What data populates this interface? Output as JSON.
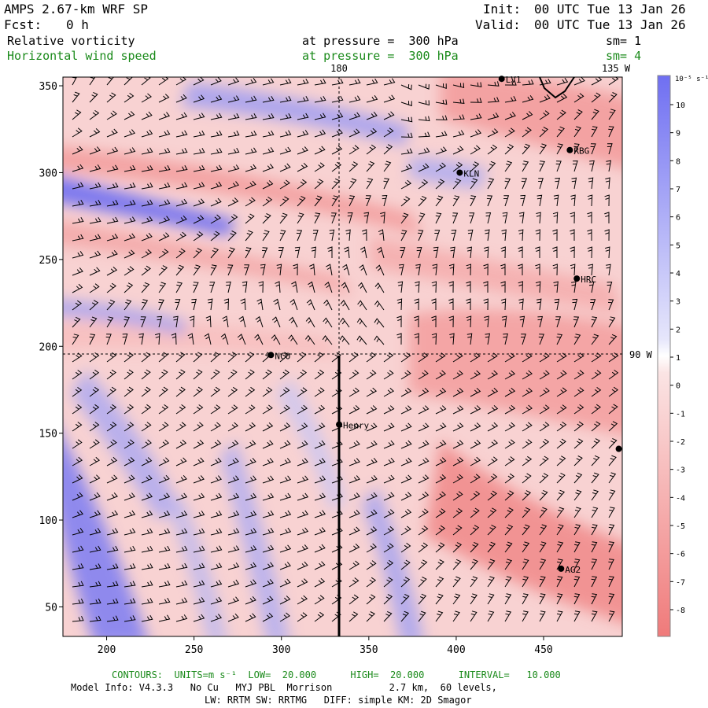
{
  "header": {
    "model_title": "AMPS 2.67-km WRF SP",
    "forecast_label": "Fcst:",
    "forecast_value": "0 h",
    "init_label": "Init:",
    "init_value": "00 UTC Tue 13 Jan 26",
    "valid_label": "Valid:",
    "valid_value": "00 UTC Tue 13 Jan 26",
    "field1_name": "Relative vorticity",
    "field1_level": "at pressure =  300 hPa",
    "field1_sm": "sm= 1",
    "field2_name": "Horizontal wind speed",
    "field2_level": "at pressure =  300 hPa",
    "field2_sm": "sm= 4"
  },
  "map": {
    "x_ticks": [
      200,
      250,
      300,
      350,
      400,
      450
    ],
    "y_ticks": [
      50,
      100,
      150,
      200,
      250,
      300,
      350
    ],
    "x_range": [
      175,
      495
    ],
    "y_range": [
      33,
      355
    ],
    "meridian_180_label": "180",
    "meridian_135w_label": "135 W",
    "parallel_90w_label": "90 W",
    "stations": [
      {
        "name": "KLN",
        "x": 402,
        "y": 300
      },
      {
        "name": "RBG",
        "x": 465,
        "y": 313
      },
      {
        "name": "HRC",
        "x": 469,
        "y": 239
      },
      {
        "name": "NCO",
        "x": 294,
        "y": 195
      },
      {
        "name": "Henry",
        "x": 333,
        "y": 155
      },
      {
        "name": "AG2",
        "x": 460,
        "y": 72
      },
      {
        "name": "LV1",
        "x": 426,
        "y": 354
      },
      {
        "name": "",
        "x": 493,
        "y": 141
      }
    ],
    "colors": {
      "positive": "#6f6ff2",
      "negative": "#f07a7a",
      "neutral": "#ffffff"
    }
  },
  "colorbar": {
    "unit": "10⁻⁵ s⁻¹",
    "levels": [
      10,
      9,
      8,
      7,
      6,
      5,
      4,
      3,
      2,
      1,
      0,
      -1,
      -2,
      -3,
      -4,
      -5,
      -6,
      -7,
      -8
    ]
  },
  "footer": {
    "contours": "CONTOURS:  UNITS=m s⁻¹  LOW=  20.000      HIGH=  20.000      INTERVAL=   10.000",
    "model_info": "Model Info: V4.3.3   No Cu   MYJ PBL  Morrison          2.7 km,  60 levels,",
    "physics": "LW: RRTM SW: RRTMG   DIFF: simple KM: 2D Smagor"
  }
}
